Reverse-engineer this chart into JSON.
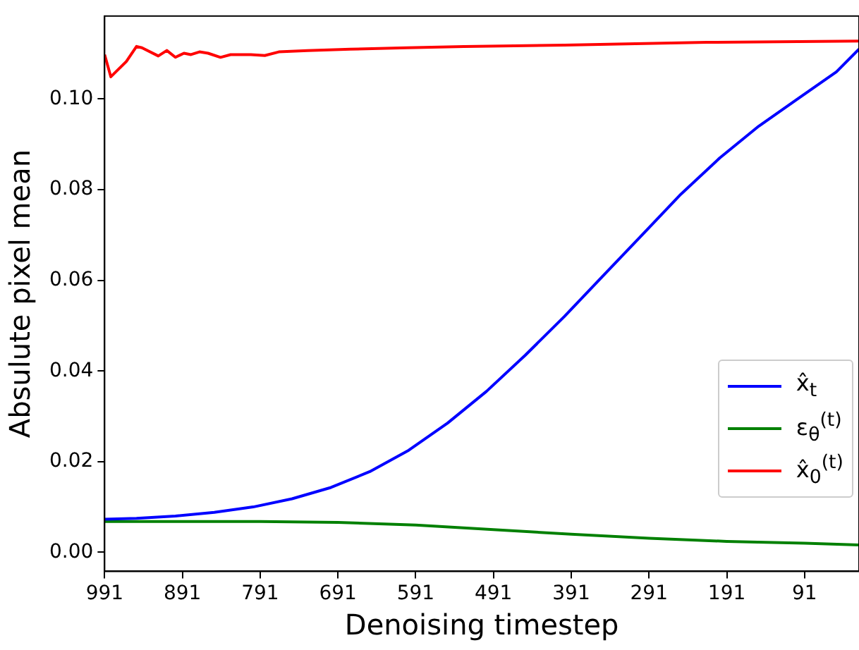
{
  "chart_data": {
    "type": "line",
    "xlabel": "Denoising timestep",
    "ylabel": "Absulute pixel mean",
    "series": [
      {
        "name": "x̂$_{t}$",
        "color": "#0000ff",
        "x": [
          991,
          950,
          900,
          850,
          800,
          750,
          700,
          650,
          600,
          550,
          500,
          450,
          400,
          350,
          300,
          250,
          200,
          150,
          100,
          50,
          21
        ],
        "values": [
          0.0073,
          0.0075,
          0.008,
          0.0088,
          0.01,
          0.0118,
          0.0143,
          0.0178,
          0.0225,
          0.0285,
          0.0355,
          0.0435,
          0.052,
          0.061,
          0.07,
          0.079,
          0.087,
          0.094,
          0.1,
          0.106,
          0.111
        ]
      },
      {
        "name": "ε$_{θ}$$^{(t)}$",
        "color": "#008000",
        "x": [
          991,
          791,
          691,
          591,
          491,
          391,
          291,
          191,
          91,
          21
        ],
        "values": [
          0.0068,
          0.0068,
          0.0066,
          0.006,
          0.005,
          0.004,
          0.0031,
          0.0024,
          0.002,
          0.0016
        ]
      },
      {
        "name": "x̂$_{0}$$^{(t)}$",
        "color": "#ff0000",
        "x": [
          991,
          983,
          963,
          950,
          943,
          922,
          911,
          900,
          889,
          880,
          869,
          858,
          842,
          829,
          803,
          785,
          767,
          730,
          675,
          602,
          529,
          400,
          217,
          21
        ],
        "values": [
          0.1098,
          0.1049,
          0.1083,
          0.1116,
          0.1113,
          0.1095,
          0.1107,
          0.1092,
          0.1101,
          0.1098,
          0.1104,
          0.1101,
          0.1092,
          0.1098,
          0.1098,
          0.1096,
          0.1104,
          0.1107,
          0.111,
          0.1113,
          0.1116,
          0.1119,
          0.1125,
          0.1128
        ]
      }
    ],
    "xlim": [
      991,
      21
    ],
    "ylim": [
      -0.0042,
      0.1183
    ],
    "xticks": [
      991,
      891,
      791,
      691,
      591,
      491,
      391,
      291,
      191,
      91
    ],
    "yticks": [
      {
        "value": 0,
        "label": "0.00"
      },
      {
        "value": 0.02,
        "label": "0.02"
      },
      {
        "value": 0.04,
        "label": "0.04"
      },
      {
        "value": 0.06,
        "label": "0.06"
      },
      {
        "value": 0.08,
        "label": "0.08"
      },
      {
        "value": 0.1,
        "label": "0.10"
      }
    ],
    "grid": false,
    "legend": "bottom right",
    "line_style": "solid",
    "marker": "none"
  }
}
